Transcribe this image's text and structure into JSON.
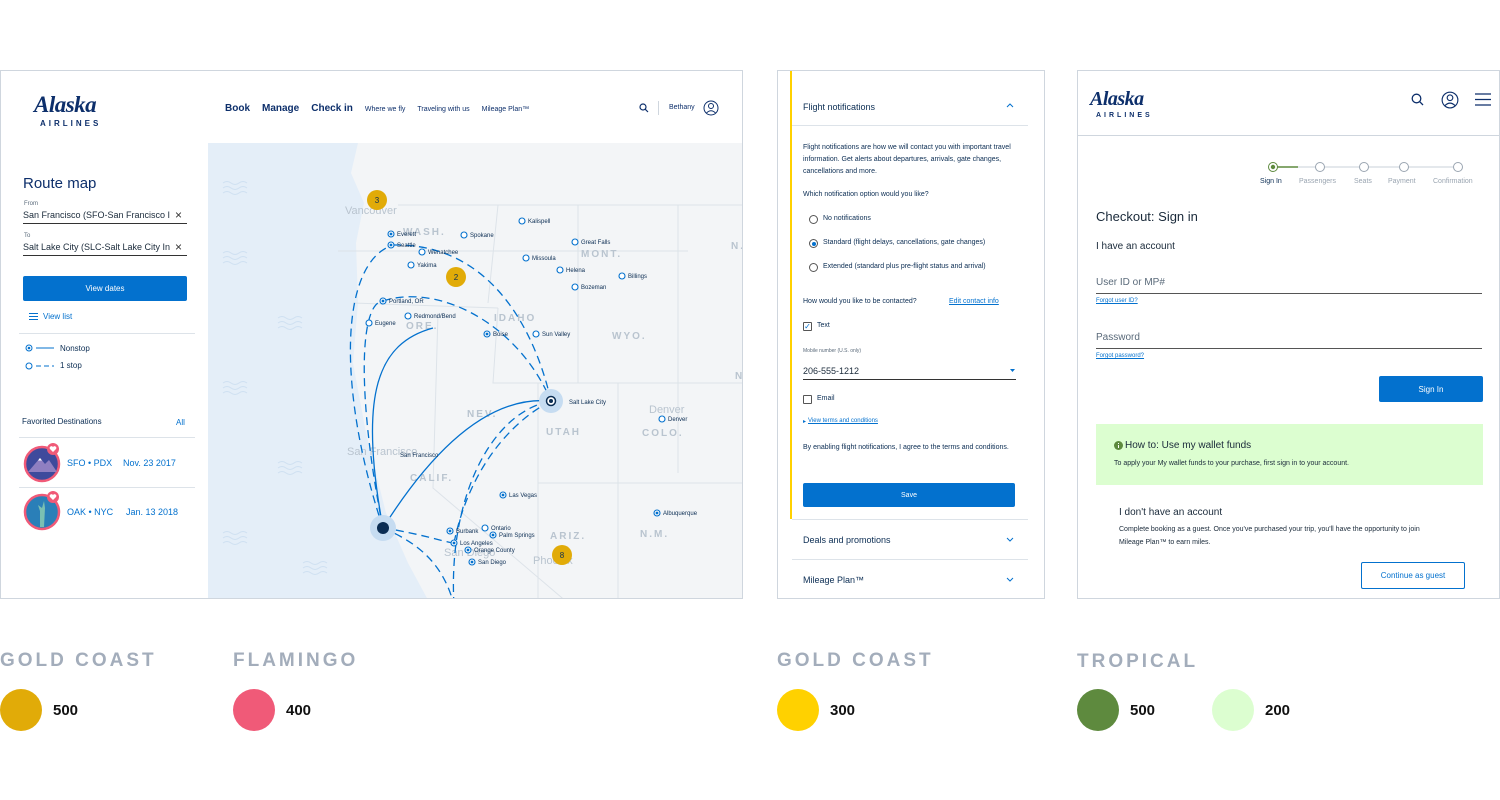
{
  "logo": {
    "wordmark": "Alaska",
    "sub": "AIRLINES"
  },
  "route_panel": {
    "nav": {
      "book": "Book",
      "manage": "Manage",
      "checkin": "Check in",
      "where": "Where we fly",
      "traveling": "Traveling with us",
      "mileage": "Mileage Plan™"
    },
    "user": "Bethany",
    "title": "Route map",
    "from_label": "From",
    "from_value": "San Francisco (SFO-San Francisco I",
    "to_label": "To",
    "to_value": "Salt Lake City (SLC-Salt Lake City In",
    "view_dates": "View dates",
    "view_list": "View list",
    "legend_nonstop": "Nonstop",
    "legend_stop": "1 stop",
    "favorites_title": "Favorited Destinations",
    "favorites_all": "All",
    "favorites": [
      {
        "route": "SFO • PDX",
        "date": "Nov. 23 2017"
      },
      {
        "route": "OAK • NYC",
        "date": "Jan. 13 2018"
      }
    ],
    "map": {
      "cities": [
        "Vancouver",
        "Everett",
        "Seattle",
        "Kalispell",
        "Spokane",
        "Wenatchee",
        "Great Falls",
        "Yakima",
        "Missoula",
        "Helena",
        "Billings",
        "Bozeman",
        "Portland, OR",
        "Redmond/Bend",
        "Eugene",
        "Boise",
        "Sun Valley",
        "Salt Lake City",
        "San Francisco",
        "Denver",
        "Las Vegas",
        "Burbank",
        "Ontario",
        "Palm Springs",
        "Los Angeles",
        "Orange County",
        "San Diego",
        "Albuquerque",
        "Phoenix",
        "Denver",
        "San Francisco",
        "San Diego"
      ],
      "states": [
        "WASH.",
        "MONT.",
        "IDAHO",
        "ORE.",
        "WYO.",
        "NEV.",
        "UTAH",
        "COLO.",
        "CALIF.",
        "ARIZ.",
        "N.M.",
        "N.",
        "N"
      ],
      "clusters": [
        "3",
        "2",
        "8"
      ]
    }
  },
  "notifications_panel": {
    "header": "Flight notifications",
    "intro": "Flight notifications are how we will contact you with important travel information. Get alerts about departures, arrivals, gate changes, cancellations and more.",
    "question": "Which notification option would you like?",
    "options": [
      "No notifications",
      "Standard (flight delays, cancellations, gate changes)",
      "Extended (standard plus pre-flight status and arrival)"
    ],
    "contact_question": "How would you like to be contacted?",
    "edit_contact": "Edit contact info",
    "text_option": "Text",
    "mobile_label": "Mobile number (U.S. only)",
    "mobile_value": "206-555-1212",
    "email_option": "Email",
    "terms_link": "View terms and conditions",
    "agree": "By enabling flight notifications, I agree to the terms and conditions.",
    "save": "Save",
    "deals": "Deals and promotions",
    "mileage": "Mileage Plan™"
  },
  "checkout_panel": {
    "steps": [
      "Sign In",
      "Passengers",
      "Seats",
      "Payment",
      "Confirmation"
    ],
    "title": "Checkout: Sign in",
    "have_account": "I have an account",
    "user_id_placeholder": "User ID or MP#",
    "forgot_user": "Forgot user ID?",
    "password_placeholder": "Password",
    "forgot_password": "Forgot password?",
    "sign_in": "Sign In",
    "howto_title": "How to: Use my wallet funds",
    "howto_text": "To apply your My wallet funds to your purchase, first sign in to your account.",
    "no_account_title": "I don't have an account",
    "no_account_text": "Complete booking as a guest. Once you've purchased your trip, you'll have the opportunity to join Mileage Plan™ to earn miles.",
    "continue_guest": "Continue as guest"
  },
  "swatches": [
    {
      "name": "GOLD COAST",
      "items": [
        {
          "value": "500",
          "color": "#e1ab08"
        }
      ]
    },
    {
      "name": "FLAMINGO",
      "items": [
        {
          "value": "400",
          "color": "#f05a78"
        }
      ]
    },
    {
      "name": "GOLD COAST",
      "items": [
        {
          "value": "300",
          "color": "#ffd100"
        }
      ]
    },
    {
      "name": "TROPICAL",
      "items": [
        {
          "value": "500",
          "color": "#5e8a3e"
        },
        {
          "value": "200",
          "color": "#dcfed0"
        }
      ]
    }
  ],
  "colors": {
    "primary": "#0371ce",
    "navy": "#0d2f6b",
    "map_bg": "#f3f5f7",
    "water": "#e4eef8"
  }
}
